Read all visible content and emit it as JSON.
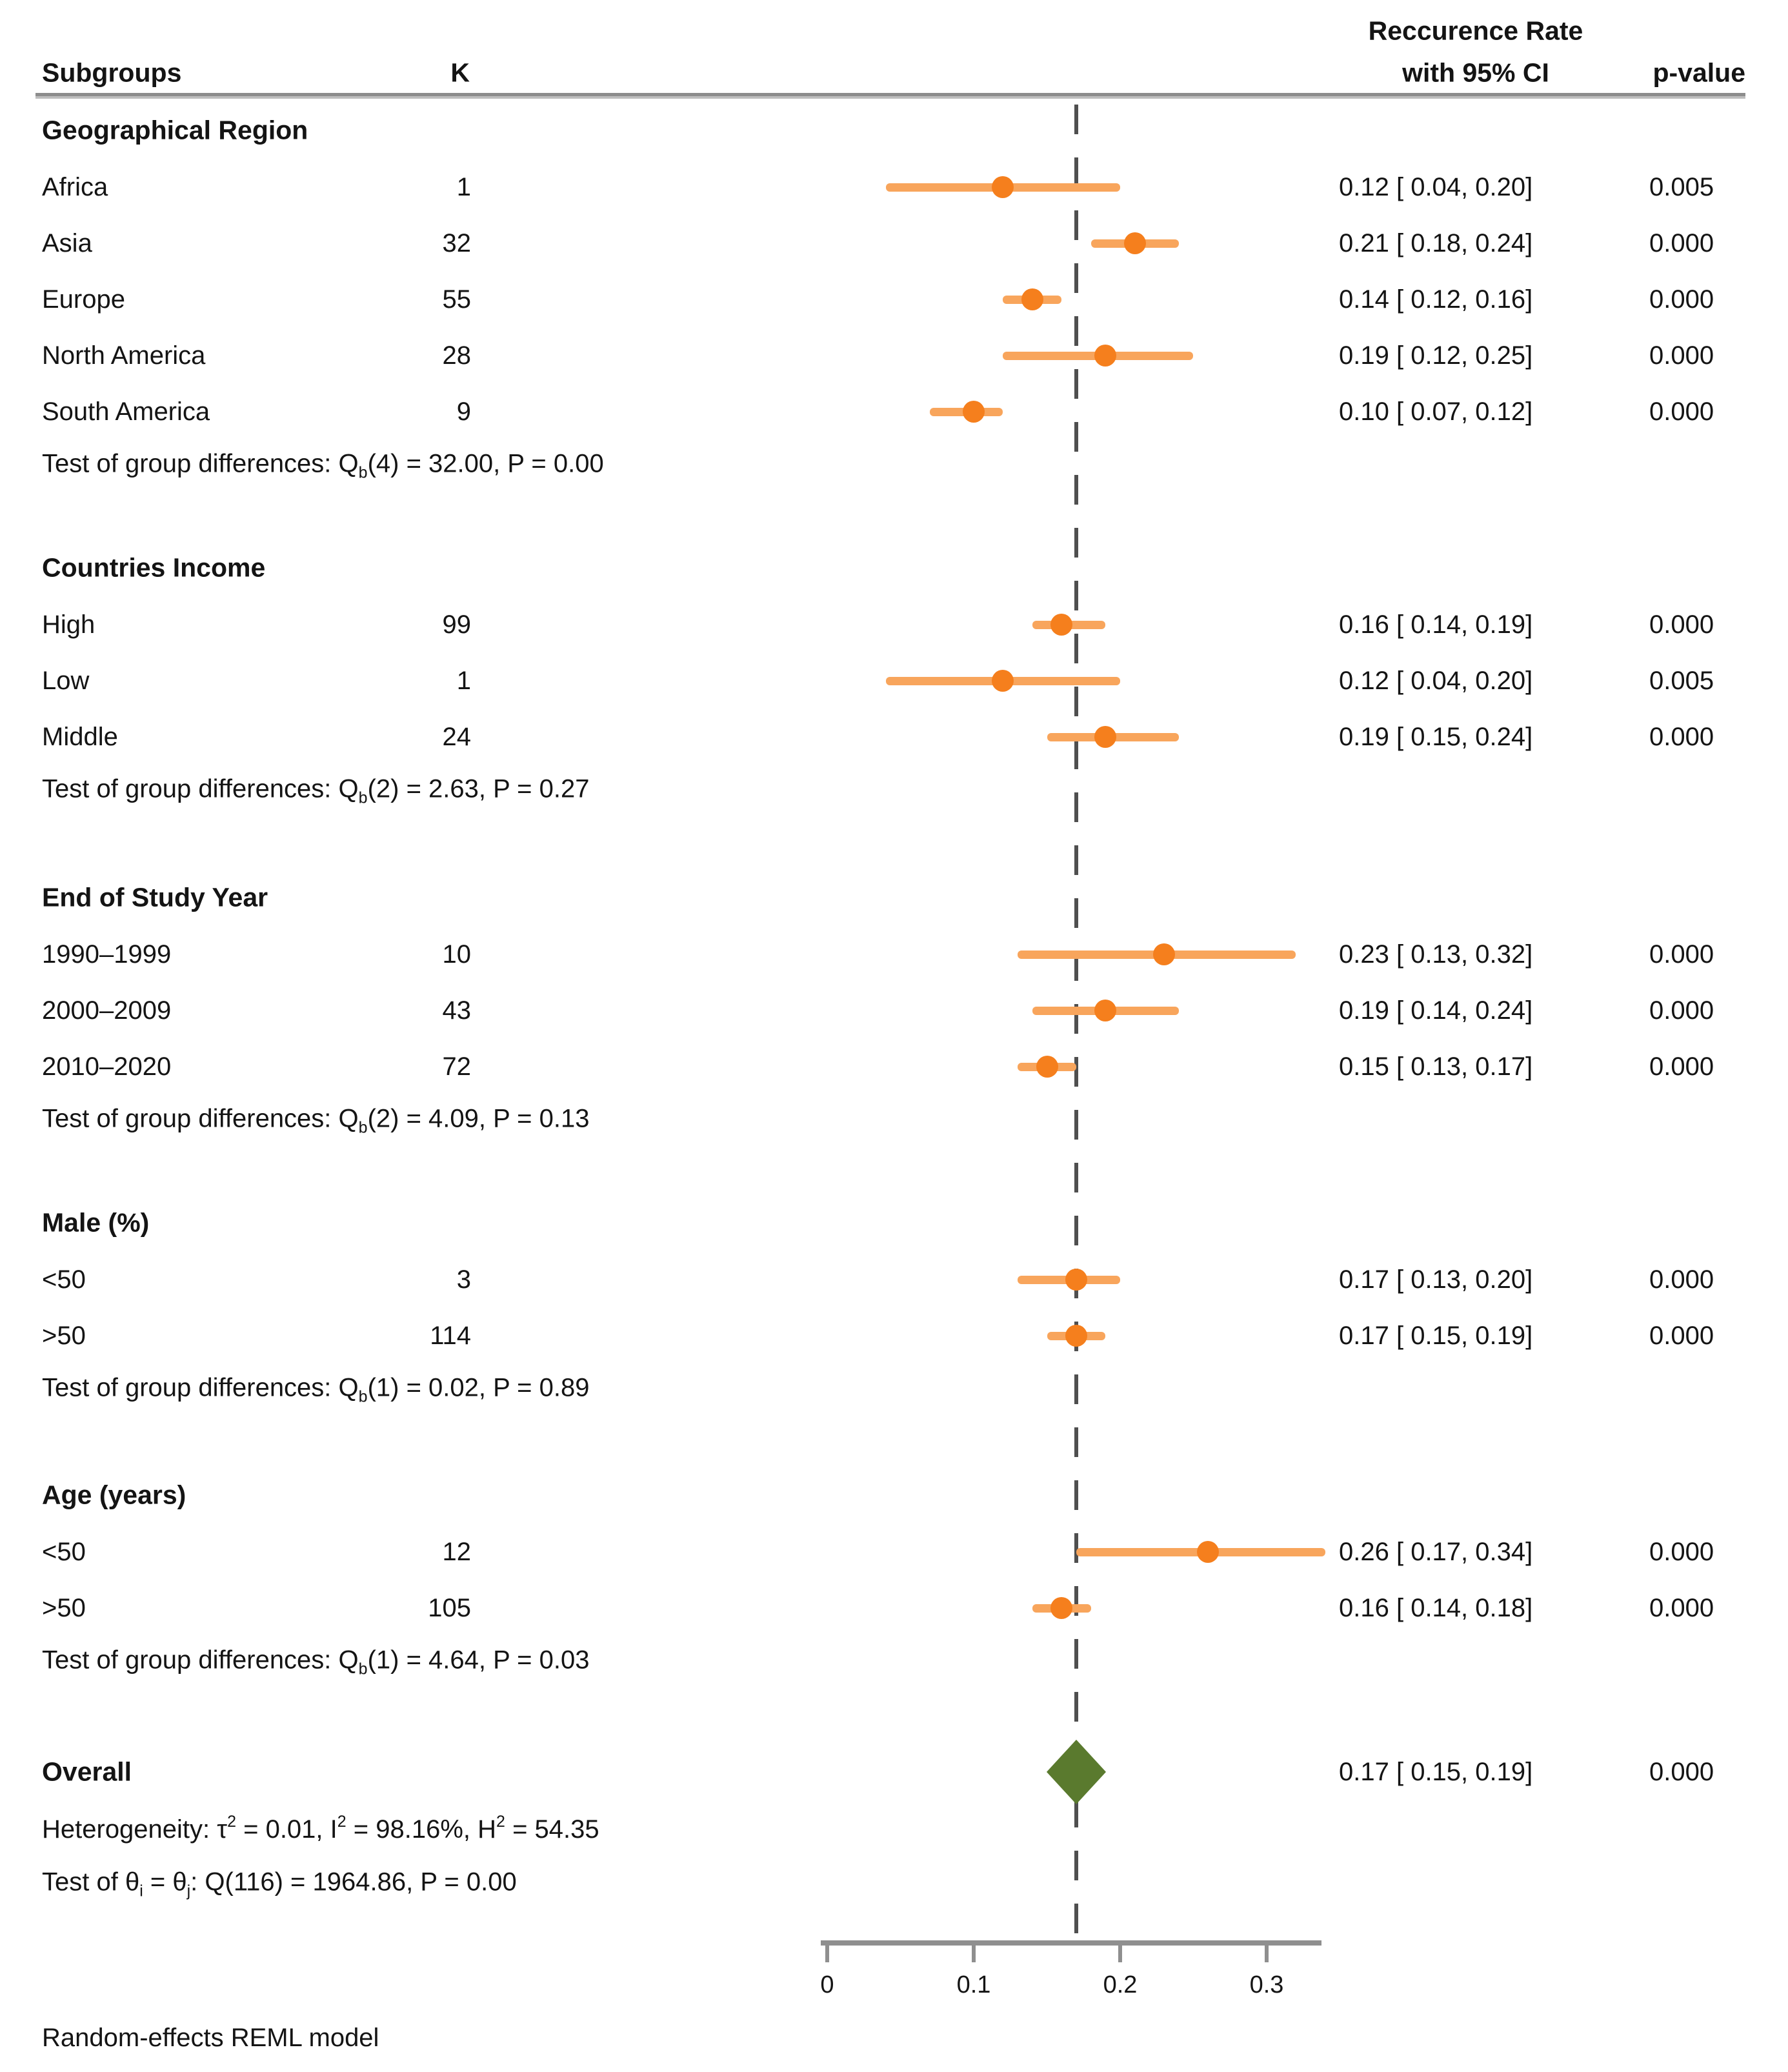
{
  "header": {
    "subgroups": "Subgroups",
    "k": "K",
    "effect_line1": "Reccurence Rate",
    "effect_line2": "with 95% CI",
    "p_value": "p-value"
  },
  "footnote": "Random-effects REML model",
  "chart_data": {
    "type": "scatter",
    "subtype": "forest-plot",
    "title": "",
    "x_axis": {
      "labels": [
        "0",
        "0.1",
        "0.2",
        "0.3"
      ],
      "values": [
        0,
        0.1,
        0.2,
        0.3
      ],
      "range": [
        -0.005,
        0.341
      ],
      "ref_line_value": 0.17
    },
    "colors": {
      "marker": "#f57f1d",
      "ci_line": "#f8a55c",
      "diamond": "#5a7a2e",
      "axis": "#8f8f8f",
      "ref_line": "#4f4f4f"
    },
    "groups": [
      {
        "title": "Geographical Region",
        "rows": [
          {
            "label": "Africa",
            "k": "1",
            "est": 0.12,
            "lo": 0.04,
            "hi": 0.2,
            "ci": "0.12 [ 0.04, 0.20]",
            "p": "0.005"
          },
          {
            "label": "Asia",
            "k": "32",
            "est": 0.21,
            "lo": 0.18,
            "hi": 0.24,
            "ci": "0.21 [ 0.18, 0.24]",
            "p": "0.000"
          },
          {
            "label": "Europe",
            "k": "55",
            "est": 0.14,
            "lo": 0.12,
            "hi": 0.16,
            "ci": "0.14 [ 0.12, 0.16]",
            "p": "0.000"
          },
          {
            "label": "North America",
            "k": "28",
            "est": 0.19,
            "lo": 0.12,
            "hi": 0.25,
            "ci": "0.19 [ 0.12, 0.25]",
            "p": "0.000"
          },
          {
            "label": "South America",
            "k": "9",
            "est": 0.1,
            "lo": 0.07,
            "hi": 0.12,
            "ci": "0.10 [ 0.07, 0.12]",
            "p": "0.000"
          }
        ],
        "test": {
          "prefix": "Test of group differences: Q",
          "sub": "b",
          "rest": "(4) = 32.00, P = 0.00"
        }
      },
      {
        "title": "Countries Income",
        "rows": [
          {
            "label": "High",
            "k": "99",
            "est": 0.16,
            "lo": 0.14,
            "hi": 0.19,
            "ci": "0.16 [ 0.14, 0.19]",
            "p": "0.000"
          },
          {
            "label": "Low",
            "k": "1",
            "est": 0.12,
            "lo": 0.04,
            "hi": 0.2,
            "ci": "0.12 [ 0.04, 0.20]",
            "p": "0.005"
          },
          {
            "label": "Middle",
            "k": "24",
            "est": 0.19,
            "lo": 0.15,
            "hi": 0.24,
            "ci": "0.19 [ 0.15, 0.24]",
            "p": "0.000"
          }
        ],
        "test": {
          "prefix": "Test of group differences: Q",
          "sub": "b",
          "rest": "(2) = 2.63, P = 0.27"
        }
      },
      {
        "title": "End of Study Year",
        "rows": [
          {
            "label": "1990–1999",
            "k": "10",
            "est": 0.23,
            "lo": 0.13,
            "hi": 0.32,
            "ci": "0.23 [ 0.13, 0.32]",
            "p": "0.000"
          },
          {
            "label": "2000–2009",
            "k": "43",
            "est": 0.19,
            "lo": 0.14,
            "hi": 0.24,
            "ci": "0.19 [ 0.14, 0.24]",
            "p": "0.000"
          },
          {
            "label": "2010–2020",
            "k": "72",
            "est": 0.15,
            "lo": 0.13,
            "hi": 0.17,
            "ci": "0.15 [ 0.13, 0.17]",
            "p": "0.000"
          }
        ],
        "test": {
          "prefix": "Test of group differences: Q",
          "sub": "b",
          "rest": "(2) = 4.09, P = 0.13"
        }
      },
      {
        "title": "Male (%)",
        "rows": [
          {
            "label": "<50",
            "k": "3",
            "est": 0.17,
            "lo": 0.13,
            "hi": 0.2,
            "ci": "0.17 [ 0.13, 0.20]",
            "p": "0.000"
          },
          {
            "label": ">50",
            "k": "114",
            "est": 0.17,
            "lo": 0.15,
            "hi": 0.19,
            "ci": "0.17 [ 0.15, 0.19]",
            "p": "0.000"
          }
        ],
        "test": {
          "prefix": "Test of group differences: Q",
          "sub": "b",
          "rest": "(1) = 0.02, P = 0.89"
        }
      },
      {
        "title": "Age (years)",
        "rows": [
          {
            "label": "<50",
            "k": "12",
            "est": 0.26,
            "lo": 0.17,
            "hi": 0.34,
            "ci": "0.26 [ 0.17, 0.34]",
            "p": "0.000"
          },
          {
            "label": ">50",
            "k": "105",
            "est": 0.16,
            "lo": 0.14,
            "hi": 0.18,
            "ci": "0.16 [ 0.14, 0.18]",
            "p": "0.000"
          }
        ],
        "test": {
          "prefix": "Test of group differences: Q",
          "sub": "b",
          "rest": "(1) = 4.64, P = 0.03"
        }
      }
    ],
    "overall": {
      "label": "Overall",
      "est": 0.17,
      "lo": 0.15,
      "hi": 0.19,
      "ci": "0.17 [ 0.15, 0.19]",
      "p": "0.000"
    },
    "heterogeneity": {
      "t1": "Heterogeneity: τ",
      "s1": "2",
      "t2": " = 0.01, I",
      "s2": "2",
      "t3": " = 98.16%, H",
      "s3": "2",
      "t4": " = 54.35"
    },
    "overall_test": {
      "t1": "Test of θ",
      "s1": "i",
      "t2": " = θ",
      "s2": "j",
      "t3": ": Q(116) = 1964.86, P = 0.00"
    }
  }
}
